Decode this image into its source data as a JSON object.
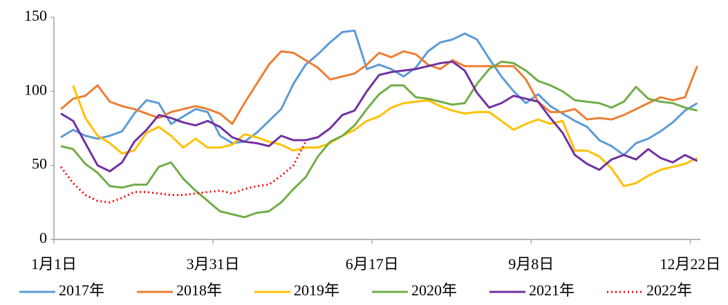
{
  "chart_data": {
    "type": "line",
    "categories": [
      "1月1日",
      null,
      null,
      null,
      null,
      null,
      null,
      null,
      null,
      null,
      null,
      null,
      null,
      "3月31日",
      null,
      null,
      null,
      null,
      null,
      null,
      null,
      null,
      null,
      null,
      null,
      null,
      "6月17日",
      null,
      null,
      null,
      null,
      null,
      null,
      null,
      null,
      null,
      null,
      null,
      null,
      "9月8日",
      null,
      null,
      null,
      null,
      null,
      null,
      null,
      null,
      null,
      null,
      null,
      null,
      "12月22日"
    ],
    "ylim": [
      0,
      150
    ],
    "yticks": [
      0,
      50,
      100,
      150
    ],
    "grid": false,
    "legend": "bottom",
    "series": [
      {
        "name": "2017年",
        "color": "#5b9bd5",
        "values": [
          69,
          74,
          70,
          68,
          70,
          73,
          85,
          94,
          92,
          78,
          83,
          88,
          86,
          70,
          65,
          66,
          72,
          80,
          88,
          105,
          118,
          125,
          133,
          140,
          141,
          115,
          118,
          115,
          110,
          116,
          127,
          133,
          135,
          139,
          135,
          122,
          110,
          100,
          92,
          98,
          90,
          85,
          80,
          76,
          67,
          63,
          57,
          65,
          68,
          73,
          79,
          87,
          92
        ]
      },
      {
        "name": "2018年",
        "color": "#ed7d31",
        "values": [
          88,
          95,
          97,
          104,
          93,
          90,
          88,
          85,
          82,
          86,
          88,
          90,
          88,
          85,
          78,
          92,
          105,
          118,
          127,
          126,
          121,
          116,
          108,
          110,
          112,
          118,
          126,
          123,
          127,
          125,
          118,
          115,
          121,
          117,
          117,
          117,
          117,
          117,
          108,
          93,
          86,
          86,
          88,
          81,
          82,
          81,
          84,
          88,
          92,
          96,
          94,
          96,
          117
        ]
      },
      {
        "name": "2019年",
        "color": "#ffc000",
        "values": [
          null,
          104,
          82,
          70,
          65,
          58,
          60,
          72,
          76,
          70,
          62,
          68,
          62,
          62,
          64,
          71,
          69,
          66,
          64,
          60,
          62,
          62,
          65,
          70,
          74,
          80,
          83,
          89,
          92,
          93,
          94,
          90,
          87,
          85,
          86,
          86,
          80,
          74,
          78,
          81,
          78,
          80,
          60,
          60,
          56,
          48,
          36,
          38,
          43,
          47,
          49,
          51,
          55
        ]
      },
      {
        "name": "2020年",
        "color": "#70ad47",
        "values": [
          63,
          61,
          51,
          45,
          36,
          35,
          37,
          37,
          49,
          52,
          41,
          33,
          26,
          19,
          17,
          15,
          18,
          19,
          25,
          34,
          42,
          56,
          66,
          70,
          77,
          88,
          98,
          104,
          104,
          96,
          95,
          93,
          91,
          92,
          105,
          115,
          120,
          119,
          114,
          107,
          104,
          100,
          94,
          93,
          92,
          89,
          93,
          103,
          95,
          93,
          92,
          89,
          87
        ]
      },
      {
        "name": "2021年",
        "color": "#7030a0",
        "values": [
          85,
          80,
          65,
          50,
          46,
          52,
          66,
          74,
          84,
          82,
          79,
          77,
          80,
          76,
          69,
          66,
          65,
          63,
          70,
          67,
          67,
          69,
          75,
          84,
          87,
          100,
          111,
          113,
          114,
          115,
          117,
          119,
          120,
          114,
          99,
          89,
          92,
          97,
          95,
          93,
          82,
          72,
          57,
          51,
          47,
          54,
          57,
          54,
          61,
          55,
          52,
          57,
          53
        ]
      },
      {
        "name": "2022年",
        "color": "#ff0000",
        "dotted": true,
        "values": [
          49,
          38,
          30,
          26,
          25,
          28,
          32,
          32,
          31,
          30,
          30,
          31,
          32,
          33,
          31,
          34,
          36,
          37,
          43,
          50,
          66,
          null,
          null,
          null,
          null,
          null,
          null,
          null,
          null,
          null,
          null,
          null,
          null,
          null,
          null,
          null,
          null,
          null,
          null,
          null,
          null,
          null,
          null,
          null,
          null,
          null,
          null,
          null,
          null,
          null,
          null,
          null,
          null
        ]
      }
    ]
  }
}
